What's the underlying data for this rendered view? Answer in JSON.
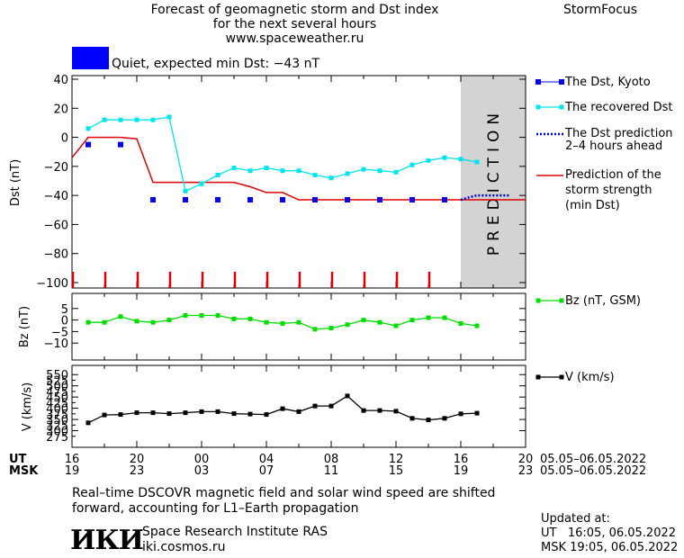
{
  "header": {
    "title_line1": "Forecast of geomagnetic storm and Dst index",
    "title_line2": "for the next several hours",
    "title_line3": "www.spaceweather.ru",
    "brand": "StormFocus"
  },
  "status": {
    "label": "Quiet, expected min Dst: −43 nT",
    "color": "#0000ff"
  },
  "legend": {
    "dst_kyoto": "The Dst, Kyoto",
    "dst_recovered": "The recovered Dst",
    "dst_prediction_line1": "The Dst prediction",
    "dst_prediction_line2": "2–4 hours ahead",
    "storm_line1": "Prediction of the",
    "storm_line2": "storm strength",
    "storm_line3": "(min Dst)",
    "bz": "Bz (nT, GSM)",
    "v": "V (km/s)"
  },
  "prediction_label": "PREDICTION",
  "axes": {
    "ut_label": "UT",
    "msk_label": "MSK",
    "ut_ticks": [
      "16",
      "20",
      "00",
      "04",
      "08",
      "12",
      "16",
      "20"
    ],
    "msk_ticks": [
      "19",
      "23",
      "03",
      "07",
      "11",
      "15",
      "19",
      "23"
    ],
    "ut_date_range": "05.05–06.05.2022",
    "msk_date_range": "05.05–06.05.2022"
  },
  "footer": {
    "note_line1": "Real–time DSCOVR magnetic field and solar wind speed are shifted",
    "note_line2": "forward, accounting for L1–Earth propagation",
    "institute": "Space Research Institute RAS",
    "website": "iki.cosmos.ru",
    "logo_text": "ИКИ",
    "updated_label": "Updated at:",
    "updated_ut": "UT   16:05, 06.05.2022",
    "updated_msk": "MSK 19:05, 06.05.2022"
  },
  "colors": {
    "kyoto": "#0000ff",
    "recovered": "#00e5ee",
    "prediction": "#0000cc",
    "storm": "#dd0000",
    "bz": "#00dd00",
    "v": "#000000",
    "prediction_zone": "#d3d3d3"
  },
  "chart_data": [
    {
      "type": "scatter",
      "panel": "dst",
      "ylabel": "Dst (nT)",
      "xlabel": "UT",
      "x_unit": "hours since 16 UT 05.05.2022",
      "xlim": [
        0,
        28
      ],
      "ylim": [
        -100,
        40
      ],
      "y_ticks": [
        40,
        20,
        0,
        -20,
        -40,
        -60,
        -80,
        -100
      ],
      "prediction_zone": [
        24,
        28
      ],
      "series": [
        {
          "name": "The Dst, Kyoto",
          "style": "square-markers",
          "x": [
            1,
            3,
            5,
            7,
            9,
            11,
            13,
            15,
            17,
            19,
            21,
            23
          ],
          "values": [
            -5,
            -5,
            -43,
            -43,
            -43,
            -43,
            -43,
            -43,
            -43,
            -43,
            -43,
            -43
          ]
        },
        {
          "name": "The recovered Dst",
          "style": "line-markers",
          "x": [
            1,
            2,
            3,
            4,
            5,
            6,
            7,
            8,
            9,
            10,
            11,
            12,
            13,
            14,
            15,
            16,
            17,
            18,
            19,
            20,
            21,
            22,
            23,
            24,
            25
          ],
          "values": [
            6,
            12,
            12,
            12,
            12,
            14,
            -37,
            -32,
            -26,
            -21,
            -23,
            -21,
            -23,
            -23,
            -26,
            -28,
            -25,
            -22,
            -23,
            -24,
            -19,
            -16,
            -14,
            -15,
            -17
          ]
        },
        {
          "name": "The Dst prediction 2–4 hours ahead",
          "style": "dotted",
          "x": [
            24,
            24.3,
            24.6,
            25,
            25.5,
            26,
            26.5,
            27
          ],
          "values": [
            -43,
            -42,
            -41,
            -40,
            -40,
            -40,
            -40,
            -40
          ]
        },
        {
          "name": "Prediction of the storm strength (min Dst)",
          "style": "step-line",
          "x": [
            0,
            1,
            3,
            4,
            5,
            6,
            7,
            8,
            9,
            10,
            11,
            12,
            13,
            14,
            15,
            28
          ],
          "values": [
            -14,
            0,
            0,
            -1,
            -31,
            -31,
            -31,
            -31,
            -31,
            -31,
            -34,
            -38,
            -38,
            -43,
            -43,
            -43
          ]
        }
      ]
    },
    {
      "type": "line",
      "panel": "bz",
      "ylabel": "Bz (nT)",
      "xlim": [
        0,
        28
      ],
      "ylim": [
        -15,
        10
      ],
      "y_ticks": [
        5,
        0,
        -5,
        -10
      ],
      "series": [
        {
          "name": "Bz (nT, GSM)",
          "x": [
            1,
            2,
            3,
            4,
            5,
            6,
            7,
            8,
            9,
            10,
            11,
            12,
            13,
            14,
            15,
            16,
            17,
            18,
            19,
            20,
            21,
            22,
            23,
            24,
            25
          ],
          "values": [
            -1,
            -1,
            1.5,
            -0.5,
            -1,
            0,
            2,
            2,
            2,
            0.5,
            0.5,
            -1,
            -1.5,
            -1,
            -4,
            -3.5,
            -2,
            0,
            -1,
            -2.5,
            0,
            1,
            1,
            -1.5,
            -2.5
          ]
        }
      ]
    },
    {
      "type": "line",
      "panel": "v",
      "ylabel": "V (km/s)",
      "xlim": [
        0,
        28
      ],
      "ylim": [
        250,
        575
      ],
      "y_ticks": [
        550,
        500,
        450,
        400,
        350,
        300
      ],
      "y_minor_ticks": [
        525,
        475,
        425,
        375,
        325,
        275
      ],
      "series": [
        {
          "name": "V (km/s)",
          "x": [
            1,
            2,
            3,
            4,
            5,
            6,
            7,
            8,
            9,
            10,
            11,
            12,
            13,
            14,
            15,
            16,
            17,
            18,
            19,
            20,
            21,
            22,
            23,
            24,
            25
          ],
          "values": [
            335,
            370,
            372,
            380,
            380,
            376,
            380,
            385,
            385,
            376,
            374,
            372,
            398,
            385,
            410,
            410,
            455,
            390,
            390,
            387,
            355,
            348,
            355,
            375,
            378
          ]
        }
      ]
    }
  ]
}
